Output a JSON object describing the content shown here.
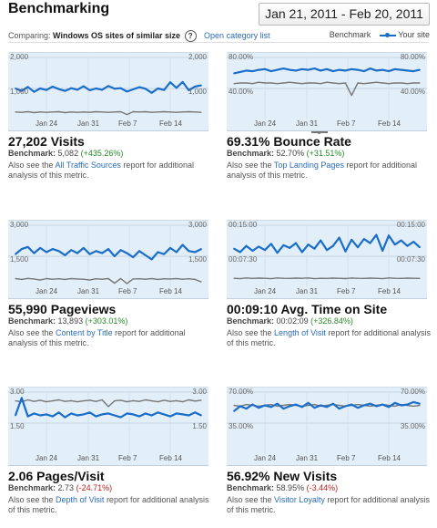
{
  "header": {
    "title": "Benchmarking",
    "date_range": "Jan 21, 2011 - Feb 20, 2011"
  },
  "compare": {
    "prefix": "Comparing:",
    "segment": "Windows OS sites of similar size",
    "info_icon": "?",
    "link": "Open category list"
  },
  "legend": {
    "benchmark": "Benchmark",
    "site": "Your site"
  },
  "colors": {
    "site": "#1a6ec9",
    "benchmark": "#777777",
    "chart_bg": "#e2eef8",
    "positive": "#2a8a2a",
    "negative": "#c02020",
    "link": "#2b6cb8"
  },
  "see_also": {
    "prefix": "Also see the",
    "suffix": "report for additional analysis of this metric."
  },
  "panels": [
    {
      "title": "27,202 Visits",
      "benchmark_label": "Benchmark:",
      "benchmark_value": "5,082",
      "change": "(+435.26%)",
      "report_link": "All Traffic Sources",
      "y_top": "2,000",
      "y_mid": "1,000"
    },
    {
      "title": "69.31% Bounce Rate",
      "benchmark_label": "Benchmark:",
      "benchmark_value": "52.70%",
      "change": "(+31.51%)",
      "report_link": "Top Landing Pages",
      "y_top": "80.00%",
      "y_mid": "40.00%"
    },
    {
      "title": "55,990 Pageviews",
      "benchmark_label": "Benchmark:",
      "benchmark_value": "13,893",
      "change": "(+303.01%)",
      "report_link": "Content by Title",
      "y_top": "3,000",
      "y_mid": "1,500"
    },
    {
      "title": "00:09:10 Avg. Time on Site",
      "benchmark_label": "Benchmark:",
      "benchmark_value": "00:02:09",
      "change": "(+326.84%)",
      "report_link": "Length of Visit",
      "y_top": "00:15:00",
      "y_mid": "00:07:30"
    },
    {
      "title": "2.06 Pages/Visit",
      "benchmark_label": "Benchmark:",
      "benchmark_value": "2.73",
      "change": "(-24.71%)",
      "report_link": "Depth of Visit",
      "y_top": "3.00",
      "y_mid": "1.50"
    },
    {
      "title": "56.92% New Visits",
      "benchmark_label": "Benchmark:",
      "benchmark_value": "58.95%",
      "change": "(-3.44%)",
      "report_link": "Visitor Loyalty",
      "y_top": "70.00%",
      "y_mid": "35.00%"
    }
  ],
  "chart_data": [
    {
      "type": "line",
      "title": "Visits",
      "x_ticks": [
        "Jan 24",
        "Jan 31",
        "Feb 7",
        "Feb 14"
      ],
      "ylim": [
        0,
        2000
      ],
      "series": [
        {
          "name": "Your site",
          "values": [
            1000,
            920,
            1050,
            890,
            1000,
            950,
            1060,
            980,
            920,
            1010,
            960,
            1070,
            940,
            1000,
            960,
            1080,
            990,
            1010,
            900,
            970,
            1040,
            990,
            860,
            1000,
            950,
            1200,
            1020,
            1210,
            940,
            1060,
            1100
          ]
        },
        {
          "name": "Benchmark",
          "values": [
            240,
            230,
            250,
            220,
            240,
            230,
            240,
            250,
            220,
            240,
            230,
            240,
            230,
            250,
            240,
            230,
            240,
            250,
            160,
            250,
            240,
            250,
            230,
            240,
            250,
            240,
            230,
            240,
            250,
            240,
            230
          ]
        }
      ]
    },
    {
      "type": "line",
      "title": "Bounce Rate",
      "x_ticks": [
        "Jan 24",
        "Jan 31",
        "Feb 7",
        "Feb 14"
      ],
      "ylim": [
        0,
        90
      ],
      "series": [
        {
          "name": "Your site",
          "values": [
            67,
            69,
            71,
            70,
            72,
            73,
            70,
            72,
            74,
            72,
            71,
            73,
            72,
            74,
            71,
            73,
            70,
            72,
            71,
            73,
            72,
            70,
            74,
            71,
            72,
            70,
            73,
            72,
            71,
            70,
            72
          ]
        },
        {
          "name": "Benchmark",
          "values": [
            52,
            53,
            53,
            52,
            54,
            53,
            53,
            52,
            53,
            54,
            53,
            52,
            53,
            53,
            52,
            54,
            53,
            52,
            53,
            35,
            53,
            52,
            53,
            54,
            53,
            52,
            53,
            53,
            52,
            53,
            53
          ]
        }
      ]
    },
    {
      "type": "line",
      "title": "Pageviews",
      "x_ticks": [
        "Jan 24",
        "Jan 31",
        "Feb 7",
        "Feb 14"
      ],
      "ylim": [
        0,
        3000
      ],
      "series": [
        {
          "name": "Your site",
          "values": [
            1600,
            1850,
            1950,
            1650,
            1900,
            1700,
            1850,
            1750,
            1550,
            1800,
            1650,
            1900,
            1600,
            1750,
            1650,
            1850,
            1500,
            1800,
            1650,
            1450,
            1750,
            1550,
            1350,
            1700,
            1600,
            1900,
            1700,
            2050,
            1750,
            1700,
            1850
          ]
        },
        {
          "name": "Benchmark",
          "values": [
            420,
            380,
            430,
            400,
            350,
            420,
            390,
            410,
            380,
            420,
            400,
            390,
            350,
            410,
            390,
            420,
            200,
            420,
            180,
            400,
            410,
            390,
            420,
            380,
            410,
            400,
            420,
            390,
            410,
            380,
            260
          ]
        }
      ]
    },
    {
      "type": "line",
      "title": "Avg. Time on Site",
      "x_ticks": [
        "Jan 24",
        "Jan 31",
        "Feb 7",
        "Feb 14"
      ],
      "ylim": [
        0,
        900
      ],
      "series": [
        {
          "name": "Your site",
          "values": [
            560,
            510,
            600,
            530,
            590,
            540,
            630,
            500,
            610,
            570,
            640,
            510,
            620,
            560,
            680,
            540,
            600,
            720,
            520,
            690,
            580,
            700,
            640,
            760,
            530,
            750,
            620,
            680,
            600,
            660,
            580
          ]
        },
        {
          "name": "Benchmark",
          "values": [
            130,
            125,
            135,
            128,
            132,
            130,
            125,
            135,
            130,
            128,
            132,
            130,
            135,
            125,
            130,
            128,
            132,
            130,
            126,
            134,
            130,
            128,
            132,
            130,
            125,
            135,
            130,
            128,
            132,
            130,
            128
          ]
        }
      ]
    },
    {
      "type": "line",
      "title": "Pages/Visit",
      "x_ticks": [
        "Jan 24",
        "Jan 31",
        "Feb 7",
        "Feb 14"
      ],
      "ylim": [
        0,
        3.2
      ],
      "series": [
        {
          "name": "Your site",
          "values": [
            2.0,
            2.9,
            1.95,
            2.1,
            2.0,
            2.05,
            1.95,
            2.15,
            1.9,
            2.1,
            2.0,
            2.05,
            2.15,
            1.95,
            2.05,
            2.1,
            2.0,
            1.9,
            2.1,
            2.05,
            1.95,
            2.1,
            2.0,
            2.15,
            2.05,
            1.95,
            2.1,
            2.05,
            2.0,
            2.15,
            2.0
          ]
        },
        {
          "name": "Benchmark",
          "values": [
            2.75,
            2.7,
            2.8,
            2.72,
            2.78,
            2.7,
            2.75,
            2.8,
            2.72,
            2.76,
            2.7,
            2.75,
            2.78,
            2.72,
            2.8,
            2.45,
            2.75,
            2.78,
            2.7,
            2.76,
            2.72,
            2.8,
            2.75,
            2.7,
            2.78,
            2.72,
            2.76,
            2.7,
            2.8,
            2.74,
            2.78
          ]
        }
      ]
    },
    {
      "type": "line",
      "title": "New Visits",
      "x_ticks": [
        "Jan 24",
        "Jan 31",
        "Feb 7",
        "Feb 14"
      ],
      "ylim": [
        0,
        75
      ],
      "series": [
        {
          "name": "Your site",
          "values": [
            52,
            58,
            55,
            60,
            56,
            59,
            57,
            61,
            55,
            58,
            60,
            57,
            62,
            56,
            59,
            57,
            61,
            55,
            58,
            60,
            56,
            59,
            61,
            58,
            60,
            57,
            62,
            59,
            60,
            63,
            61
          ]
        },
        {
          "name": "Benchmark",
          "values": [
            59,
            58,
            60,
            59,
            58,
            59,
            60,
            58,
            59,
            60,
            59,
            58,
            59,
            60,
            58,
            59,
            60,
            59,
            58,
            59,
            60,
            59,
            58,
            59,
            60,
            59,
            58,
            60,
            59,
            58,
            59
          ]
        }
      ]
    }
  ]
}
